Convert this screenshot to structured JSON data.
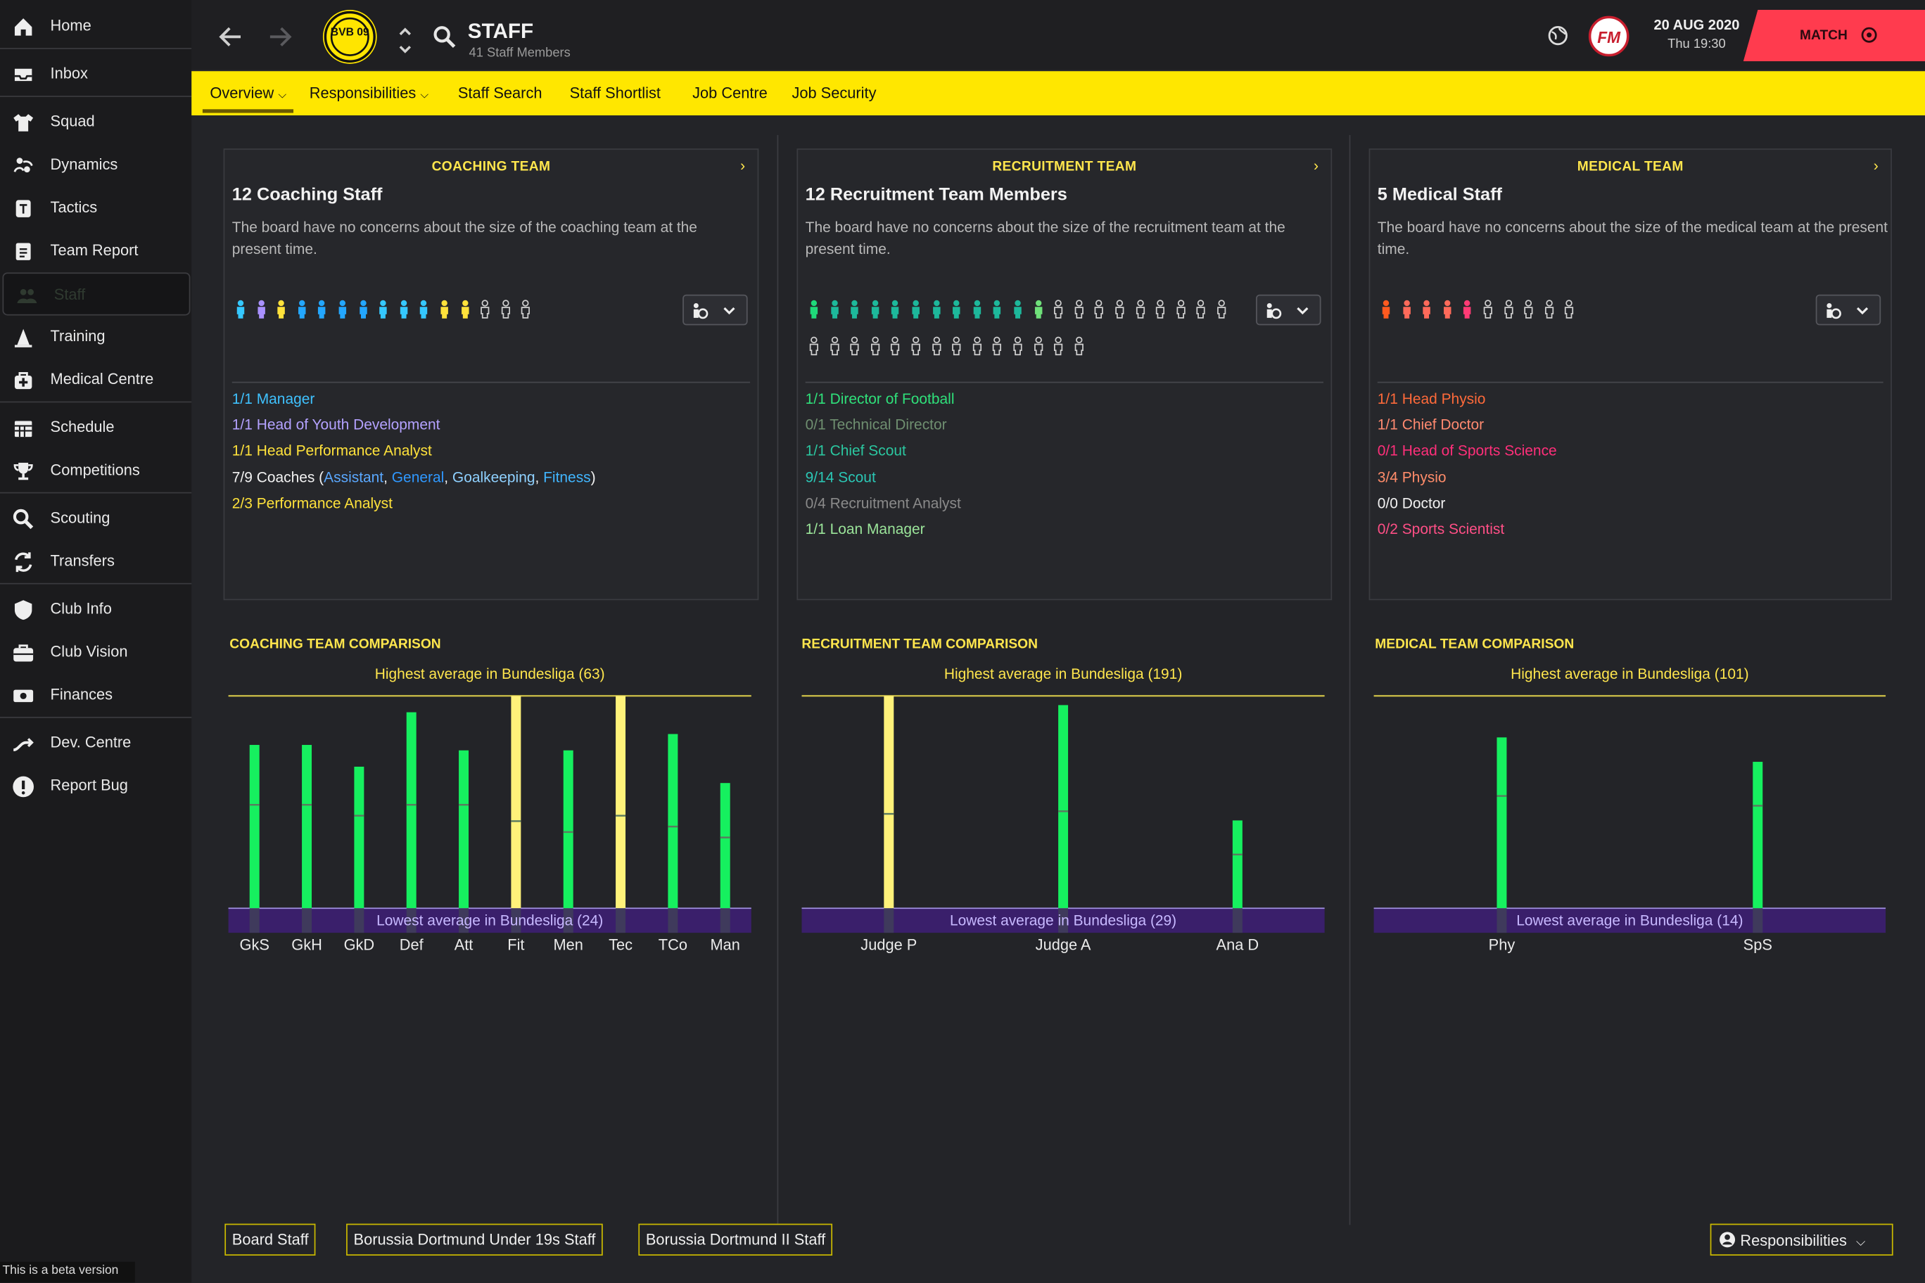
{
  "sidebar": {
    "items": [
      {
        "key": "home",
        "label": "Home",
        "icon": "home-icon"
      },
      {
        "key": "inbox",
        "label": "Inbox",
        "icon": "inbox-icon"
      },
      {
        "key": "squad",
        "label": "Squad",
        "icon": "shirt-icon"
      },
      {
        "key": "dynamics",
        "label": "Dynamics",
        "icon": "dynamics-icon"
      },
      {
        "key": "tactics",
        "label": "Tactics",
        "icon": "tactics-board-icon"
      },
      {
        "key": "team-report",
        "label": "Team Report",
        "icon": "clipboard-icon"
      },
      {
        "key": "staff",
        "label": "Staff",
        "icon": "people-icon"
      },
      {
        "key": "training",
        "label": "Training",
        "icon": "cone-icon"
      },
      {
        "key": "medical-centre",
        "label": "Medical Centre",
        "icon": "medical-kit-icon"
      },
      {
        "key": "schedule",
        "label": "Schedule",
        "icon": "calendar-icon"
      },
      {
        "key": "competitions",
        "label": "Competitions",
        "icon": "trophy-icon"
      },
      {
        "key": "scouting",
        "label": "Scouting",
        "icon": "search-icon"
      },
      {
        "key": "transfers",
        "label": "Transfers",
        "icon": "transfer-arrows-icon"
      },
      {
        "key": "club-info",
        "label": "Club Info",
        "icon": "shield-icon"
      },
      {
        "key": "club-vision",
        "label": "Club Vision",
        "icon": "briefcase-icon"
      },
      {
        "key": "finances",
        "label": "Finances",
        "icon": "money-icon"
      },
      {
        "key": "dev-centre",
        "label": "Dev. Centre",
        "icon": "growth-icon"
      },
      {
        "key": "report-bug",
        "label": "Report Bug",
        "icon": "exclamation-icon"
      }
    ],
    "beta": "This is a beta version"
  },
  "header": {
    "title": "STAFF",
    "subtitle": "41 Staff Members",
    "date": "20 AUG 2020",
    "time": "Thu 19:30",
    "match_label": "MATCH",
    "club_badge": "BVB 09",
    "fm_logo": "FM"
  },
  "colors": {
    "accent": "#ffe700",
    "match": "#ff3b4e",
    "bar_green": "#16f05f",
    "bar_yellow": "#fff27a",
    "lowest_band": "#3a1f6b"
  },
  "tabs": [
    {
      "label": "Overview"
    },
    {
      "label": "Responsibilities"
    },
    {
      "label": "Staff Search"
    },
    {
      "label": "Staff Shortlist"
    },
    {
      "label": "Job Centre"
    },
    {
      "label": "Job Security"
    }
  ],
  "cards": [
    {
      "title": "COACHING TEAM",
      "heading": "12 Coaching Staff",
      "desc": "The board have no concerns about the size of the coaching team at the present time.",
      "figures": [
        "#35c8ff",
        "#a991ff",
        "#ffe23b",
        "#23a7ff",
        "#23a7ff",
        "#23a7ff",
        "#23a7ff",
        "#35c8ff",
        "#35c8ff",
        "#35c8ff",
        "#ffe23b",
        "#ffe23b",
        "o",
        "o",
        "o"
      ],
      "roles": [
        {
          "text": "1/1 Manager",
          "color": "#3fc2ff"
        },
        {
          "text": "1/1 Head of Youth Development",
          "color": "#b4a2ff"
        },
        {
          "text": "1/1 Head Performance Analyst",
          "color": "#ffe23b"
        },
        {
          "text": "7/9 Coaches (",
          "color": "#f2f2f2",
          "parts": [
            {
              "t": "Assistant",
              "c": "#5aa8ff"
            },
            {
              "t": ", ",
              "c": "#f2f2f2"
            },
            {
              "t": "General",
              "c": "#2f98ff"
            },
            {
              "t": ", ",
              "c": "#f2f2f2"
            },
            {
              "t": "Goalkeeping",
              "c": "#8fd1ff"
            },
            {
              "t": ", ",
              "c": "#f2f2f2"
            },
            {
              "t": "Fitness",
              "c": "#41b6ff"
            },
            {
              "t": ")",
              "c": "#f2f2f2"
            }
          ]
        },
        {
          "text": "2/3 Performance Analyst",
          "color": "#ffe23b"
        }
      ]
    },
    {
      "title": "RECRUITMENT TEAM",
      "heading": "12 Recruitment Team Members",
      "desc": "The board have no concerns about the size of the recruitment team at the present time.",
      "figures": [
        "#1fd97a",
        "#1db89b",
        "#1db89b",
        "#1db89b",
        "#1db89b",
        "#1db89b",
        "#1db89b",
        "#1db89b",
        "#1db89b",
        "#1db89b",
        "#1db89b",
        "#6fe07a",
        "o",
        "o",
        "o",
        "o",
        "o",
        "o",
        "o",
        "o",
        "o",
        "o",
        "o",
        "o",
        "o",
        "o",
        "o",
        "o",
        "o",
        "o",
        "o",
        "o",
        "o",
        "o",
        "o"
      ],
      "roles": [
        {
          "text": "1/1 Director of Football",
          "color": "#2fe07a"
        },
        {
          "text": "0/1 Technical Director",
          "color": "#6f8f70"
        },
        {
          "text": "1/1 Chief Scout",
          "color": "#2bc7a0"
        },
        {
          "text": "9/14 Scout",
          "color": "#2bc7b5"
        },
        {
          "text": "0/4 Recruitment Analyst",
          "color": "#8a8a8a"
        },
        {
          "text": "1/1 Loan Manager",
          "color": "#9be59a"
        }
      ]
    },
    {
      "title": "MEDICAL TEAM",
      "heading": "5 Medical Staff",
      "desc": "The board have no concerns about the size of the medical team at the present time.",
      "figures": [
        "#ff5a1f",
        "#ff6a5a",
        "#ff6a5a",
        "#ff6a5a",
        "#ff3b75",
        "o",
        "o",
        "o",
        "o",
        "o"
      ],
      "roles": [
        {
          "text": "1/1 Head Physio",
          "color": "#ff6a3a"
        },
        {
          "text": "1/1 Chief Doctor",
          "color": "#ff8a70"
        },
        {
          "text": "0/1 Head of Sports Science",
          "color": "#ff2f7a"
        },
        {
          "text": "3/4 Physio",
          "color": "#ff8c6a"
        },
        {
          "text": "0/0 Doctor",
          "color": "#f2f2f2"
        },
        {
          "text": "0/2 Sports Scientist",
          "color": "#ff4f86"
        }
      ]
    }
  ],
  "chart_data": [
    {
      "type": "bar",
      "title": "COACHING TEAM COMPARISON",
      "highest_label": "Highest average in Bundesliga (63)",
      "lowest_label": "Lowest average in Bundesliga (24)",
      "ylim": [
        24,
        63
      ],
      "categories": [
        "GkS",
        "GkH",
        "GkD",
        "Def",
        "Att",
        "Fit",
        "Men",
        "Tec",
        "TCo",
        "Man"
      ],
      "values": [
        54,
        54,
        50,
        60,
        53,
        63,
        53,
        63,
        56,
        47
      ],
      "medians": [
        43,
        43,
        41,
        43,
        43,
        40,
        38,
        41,
        39,
        37
      ],
      "highlight": [
        false,
        false,
        false,
        false,
        false,
        true,
        false,
        true,
        false,
        false
      ]
    },
    {
      "type": "bar",
      "title": "RECRUITMENT TEAM COMPARISON",
      "highest_label": "Highest average in Bundesliga (191)",
      "lowest_label": "Lowest average in Bundesliga (29)",
      "ylim": [
        29,
        191
      ],
      "categories": [
        "Judge P",
        "Judge A",
        "Ana D"
      ],
      "values": [
        191,
        184,
        96
      ],
      "medians": [
        101,
        103,
        70
      ],
      "highlight": [
        true,
        false,
        false
      ]
    },
    {
      "type": "bar",
      "title": "MEDICAL TEAM COMPARISON",
      "highest_label": "Highest average in Bundesliga (101)",
      "lowest_label": "Lowest average in Bundesliga (14)",
      "ylim": [
        14,
        101
      ],
      "categories": [
        "Phy",
        "SpS"
      ],
      "values": [
        84,
        74
      ],
      "medians": [
        60,
        56
      ],
      "highlight": [
        false,
        false
      ]
    }
  ],
  "bottom_buttons": [
    "Board Staff",
    "Borussia Dortmund Under 19s Staff",
    "Borussia Dortmund II Staff"
  ],
  "responsibilities_button": "Responsibilities"
}
